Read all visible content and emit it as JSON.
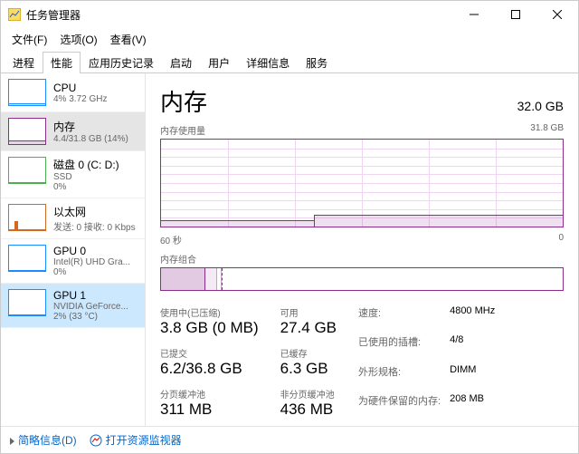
{
  "window": {
    "title": "任务管理器"
  },
  "menu": [
    "文件(F)",
    "选项(O)",
    "查看(V)"
  ],
  "tabs": [
    "进程",
    "性能",
    "应用历史记录",
    "启动",
    "用户",
    "详细信息",
    "服务"
  ],
  "activeTab": 1,
  "sidebar": [
    {
      "title": "CPU",
      "sub": "4%  3.72 GHz",
      "color": "#1a8cff",
      "selected": false,
      "thumb": {
        "type": "flat",
        "h": 0.08
      }
    },
    {
      "title": "内存",
      "sub": "4.4/31.8 GB (14%)",
      "color": "#8b2d8b",
      "selected": true,
      "thumb": {
        "type": "flat",
        "h": 0.14
      }
    },
    {
      "title": "磁盘 0 (C: D:)",
      "sub": "SSD",
      "sub2": "0%",
      "color": "#4caf50",
      "selected": false,
      "thumb": {
        "type": "flat",
        "h": 0.03
      }
    },
    {
      "title": "以太网",
      "sub": "发送: 0 接收: 0 Kbps",
      "color": "#d2691e",
      "selected": false,
      "thumb": {
        "type": "spike",
        "h": 0.35
      }
    },
    {
      "title": "GPU 0",
      "sub": "Intel(R) UHD Gra...",
      "sub2": "0%",
      "color": "#1a8cff",
      "selected": false,
      "thumb": {
        "type": "flat",
        "h": 0.02
      }
    },
    {
      "title": "GPU 1",
      "sub": "NVIDIA GeForce...",
      "sub2": "2% (33 °C)",
      "color": "#1a8cff",
      "selected": false,
      "highlighted": true,
      "thumb": {
        "type": "flat",
        "h": 0.04
      }
    }
  ],
  "main": {
    "title": "内存",
    "total": "32.0 GB",
    "chartLabel": "内存使用量",
    "chartMax": "31.8 GB",
    "timeLabel": "60 秒",
    "timeEnd": "0",
    "chart": {
      "gridRows": 10,
      "gridCols": 6,
      "baseHeightPct": 7,
      "step": {
        "leftPct": 38,
        "heightPct": 14
      }
    },
    "compLabel": "内存组合",
    "comp": {
      "segments": [
        {
          "leftPct": 0,
          "widthPct": 11,
          "bg": "rgba(139,45,139,0.25)",
          "border": "#8b2d8b"
        },
        {
          "leftPct": 11,
          "widthPct": 3,
          "bg": "rgba(139,45,139,0.10)",
          "border": "#c9a0c9"
        },
        {
          "leftPct": 14,
          "widthPct": 1,
          "bg": "#fff",
          "border": "#c9a0c9"
        }
      ],
      "divider": 15
    },
    "statsLeft": [
      {
        "label": "使用中(已压缩)",
        "value": "3.8 GB (0 MB)"
      },
      {
        "label": "可用",
        "value": "27.4 GB"
      },
      {
        "label": "已提交",
        "value": "6.2/36.8 GB"
      },
      {
        "label": "已缓存",
        "value": "6.3 GB"
      },
      {
        "label": "分页缓冲池",
        "value": "311 MB"
      },
      {
        "label": "非分页缓冲池",
        "value": "436 MB"
      }
    ],
    "statsRight": [
      {
        "k": "速度:",
        "v": "4800 MHz"
      },
      {
        "k": "已使用的插槽:",
        "v": "4/8"
      },
      {
        "k": "外形规格:",
        "v": "DIMM"
      },
      {
        "k": "为硬件保留的内存:",
        "v": "208 MB"
      }
    ]
  },
  "footer": {
    "less": "简略信息(D)",
    "resmon": "打开资源监视器"
  }
}
